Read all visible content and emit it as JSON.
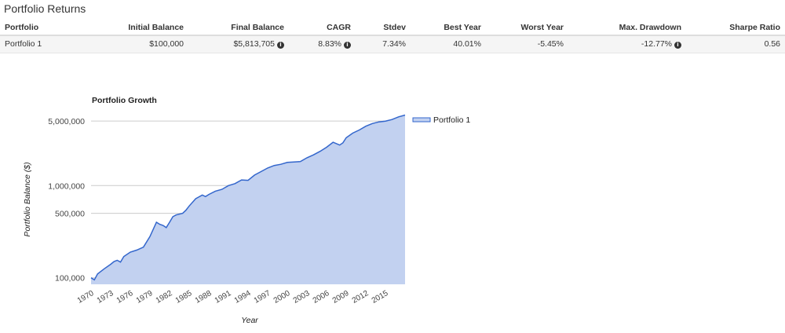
{
  "section_title": "Portfolio Returns",
  "table": {
    "headers": [
      "Portfolio",
      "Initial Balance",
      "Final Balance",
      "CAGR",
      "Stdev",
      "Best Year",
      "Worst Year",
      "Max. Drawdown",
      "Sharpe Ratio"
    ],
    "rows": [
      [
        "Portfolio 1",
        "$100,000",
        "$5,813,705",
        "8.83%",
        "7.34%",
        "40.01%",
        "-5.45%",
        "-12.77%",
        "0.56"
      ]
    ]
  },
  "icons": {
    "info": "info-circle-icon"
  },
  "colors": {
    "line": "#3366cc",
    "area": "#c2d1f0",
    "grid": "#cccccc"
  },
  "chart_data": {
    "type": "area",
    "title": "Portfolio Growth",
    "xlabel": "Year",
    "ylabel": "Portfolio Balance ($)",
    "y_scale": "log",
    "y_ticks": [
      100000,
      500000,
      1000000,
      5000000
    ],
    "y_tick_labels": [
      "100,000",
      "500,000",
      "1,000,000",
      "5,000,000"
    ],
    "x_tick_labels": [
      "1970",
      "1973",
      "1976",
      "1979",
      "1982",
      "1985",
      "1988",
      "1991",
      "1994",
      "1997",
      "2000",
      "2003",
      "2006",
      "2009",
      "2012",
      "2015"
    ],
    "xlim": [
      1970,
      2018
    ],
    "legend": "top-right",
    "series": [
      {
        "name": "Portfolio 1",
        "x": [
          1970,
          1970.5,
          1971,
          1972,
          1973,
          1973.5,
          1974,
          1974.5,
          1975,
          1976,
          1977,
          1978,
          1979,
          1980,
          1980.5,
          1981,
          1981.5,
          1982,
          1982.5,
          1983,
          1984,
          1984.5,
          1985,
          1986,
          1987,
          1987.5,
          1988,
          1989,
          1990,
          1991,
          1992,
          1993,
          1994,
          1995,
          1996,
          1997,
          1998,
          1999,
          2000,
          2001,
          2002,
          2003,
          2004,
          2005,
          2006,
          2007,
          2008,
          2008.5,
          2009,
          2010,
          2011,
          2012,
          2013,
          2014,
          2015,
          2016,
          2017,
          2018
        ],
        "values": [
          100000,
          95000,
          110000,
          125000,
          140000,
          150000,
          155000,
          148000,
          170000,
          190000,
          200000,
          215000,
          280000,
          400000,
          380000,
          370000,
          350000,
          400000,
          460000,
          480000,
          500000,
          540000,
          600000,
          720000,
          790000,
          760000,
          800000,
          870000,
          910000,
          1000000,
          1050000,
          1150000,
          1140000,
          1300000,
          1420000,
          1550000,
          1650000,
          1700000,
          1780000,
          1800000,
          1820000,
          2000000,
          2150000,
          2350000,
          2600000,
          2950000,
          2750000,
          2900000,
          3300000,
          3700000,
          4000000,
          4400000,
          4700000,
          4900000,
          5000000,
          5200000,
          5550000,
          5813705
        ]
      }
    ]
  }
}
